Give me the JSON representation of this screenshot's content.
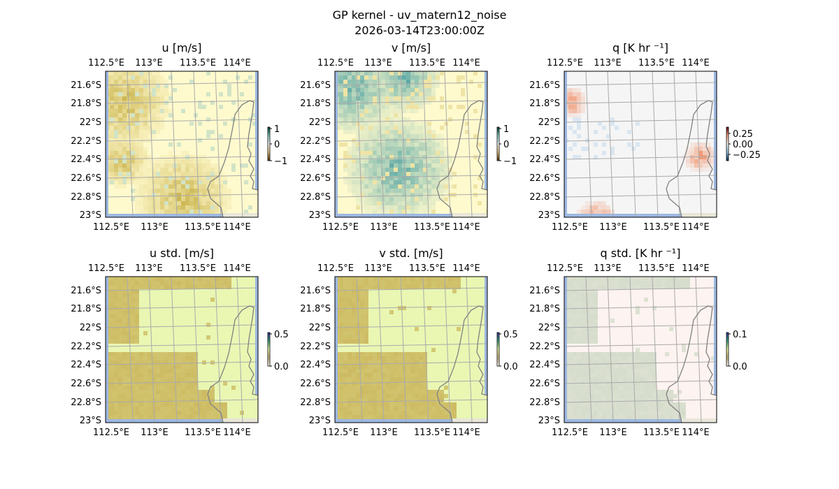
{
  "figure": {
    "title": "GP kernel - uv_matern12_noise",
    "subtitle": "2026-03-14T23:00:00Z"
  },
  "chart_data": {
    "type": "heatmap",
    "lon_ticks": [
      "112.5°E",
      "113°E",
      "113.5°E",
      "114°E"
    ],
    "lat_ticks": [
      "21.6°S",
      "21.8°S",
      "22°S",
      "22.2°S",
      "22.4°S",
      "22.6°S",
      "22.8°S",
      "23°S"
    ],
    "panels": [
      {
        "title": "u [m/s]",
        "colorbar_ticks": [
          "1",
          "0",
          "−1"
        ],
        "vmin": -1,
        "vmax": 1,
        "colormap": "BrBG",
        "background": "#fffacd",
        "accent": "#c9b24a",
        "accent2": "#8fc3bf"
      },
      {
        "title": "v [m/s]",
        "colorbar_ticks": [
          "1",
          "0",
          "−1"
        ],
        "vmin": -1,
        "vmax": 1,
        "colormap": "BrBG",
        "background": "#fffacd",
        "accent": "#5fa9a6",
        "accent2": "#d8c46a"
      },
      {
        "title": "q [K hr ⁻¹]",
        "colorbar_ticks": [
          "0.25",
          "0.00",
          "−0.25"
        ],
        "vmin": -0.4,
        "vmax": 0.4,
        "colormap": "RdBu_r",
        "background": "#f5f5f5",
        "accent": "#f08a60",
        "accent2": "#c6dcee"
      },
      {
        "title": "u std. [m/s]",
        "colorbar_ticks": [
          "0.5",
          "0.0"
        ],
        "vmin": 0,
        "vmax": 0.5,
        "colormap": "terrain",
        "background": "#e9f7b3",
        "accent": "#cdbb63",
        "accent2": "#cdbb63"
      },
      {
        "title": "v std. [m/s]",
        "colorbar_ticks": [
          "0.5",
          "0.0"
        ],
        "vmin": 0,
        "vmax": 0.5,
        "colormap": "terrain",
        "background": "#e9f7b3",
        "accent": "#cdbb63",
        "accent2": "#cdbb63"
      },
      {
        "title": "q std. [K hr ⁻¹]",
        "colorbar_ticks": [
          "0.1",
          "0.0"
        ],
        "vmin": 0,
        "vmax": 0.1,
        "colormap": "terrain",
        "background": "#fdf3f0",
        "accent": "#d5dccb",
        "accent2": "#d5dccb"
      }
    ]
  }
}
